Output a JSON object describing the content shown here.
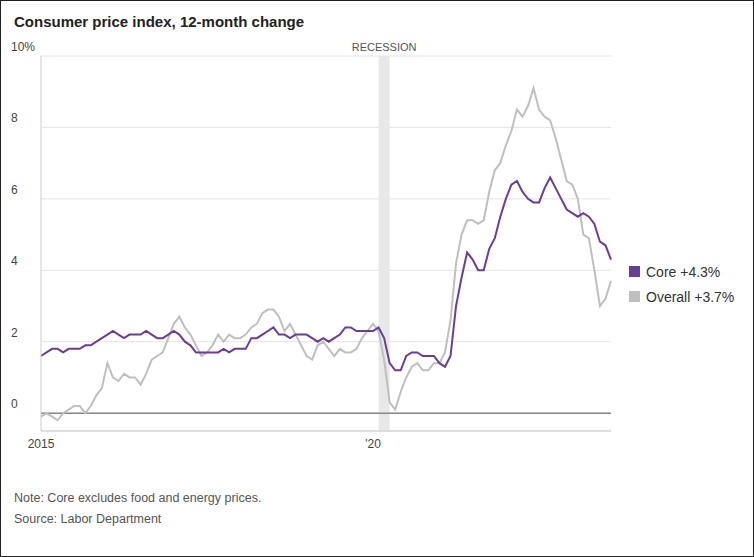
{
  "chart_data": {
    "type": "line",
    "title": "Consumer price index, 12-month change",
    "categories": [
      "2015",
      null,
      null,
      null,
      null,
      null,
      null,
      null,
      null,
      null,
      null,
      null,
      null,
      null,
      null,
      null,
      null,
      null,
      null,
      null,
      null,
      null,
      null,
      null,
      null,
      null,
      null,
      null,
      null,
      null,
      null,
      null,
      null,
      null,
      null,
      null,
      null,
      null,
      null,
      null,
      null,
      null,
      null,
      null,
      null,
      null,
      null,
      null,
      null,
      null,
      null,
      null,
      null,
      null,
      null,
      null,
      null,
      null,
      null,
      null,
      "'20",
      null,
      null,
      null,
      null,
      null,
      null,
      null,
      null,
      null,
      null,
      null,
      null,
      null,
      null,
      null,
      null,
      null,
      null,
      null,
      null,
      null,
      null,
      null,
      null,
      null,
      null,
      null,
      null,
      null,
      null,
      null,
      null,
      null,
      null,
      null,
      null,
      null,
      null,
      null,
      null,
      null,
      null,
      null
    ],
    "series": [
      {
        "name": "Core +4.3%",
        "color": "#6a3d9a",
        "values": [
          1.6,
          1.7,
          1.8,
          1.8,
          1.7,
          1.8,
          1.8,
          1.8,
          1.9,
          1.9,
          2.0,
          2.1,
          2.2,
          2.3,
          2.2,
          2.1,
          2.2,
          2.2,
          2.2,
          2.3,
          2.2,
          2.1,
          2.1,
          2.2,
          2.3,
          2.2,
          2.0,
          1.9,
          1.7,
          1.7,
          1.7,
          1.7,
          1.7,
          1.8,
          1.7,
          1.8,
          1.8,
          1.8,
          2.1,
          2.1,
          2.2,
          2.3,
          2.4,
          2.2,
          2.2,
          2.1,
          2.2,
          2.2,
          2.2,
          2.1,
          2.0,
          2.1,
          2.0,
          2.1,
          2.2,
          2.4,
          2.4,
          2.3,
          2.3,
          2.3,
          2.3,
          2.4,
          2.1,
          1.4,
          1.2,
          1.2,
          1.6,
          1.7,
          1.7,
          1.6,
          1.6,
          1.6,
          1.4,
          1.3,
          1.6,
          3.0,
          3.8,
          4.5,
          4.3,
          4.0,
          4.0,
          4.6,
          4.9,
          5.5,
          6.0,
          6.4,
          6.5,
          6.2,
          6.0,
          5.9,
          5.9,
          6.3,
          6.6,
          6.3,
          6.0,
          5.7,
          5.6,
          5.5,
          5.6,
          5.5,
          5.3,
          4.8,
          4.7,
          4.3
        ]
      },
      {
        "name": "Overall +3.7%",
        "color": "#bfbfbf",
        "values": [
          -0.1,
          0.0,
          -0.1,
          -0.2,
          0.0,
          0.1,
          0.2,
          0.2,
          0.0,
          0.2,
          0.5,
          0.7,
          1.4,
          1.0,
          0.9,
          1.1,
          1.0,
          1.0,
          0.8,
          1.1,
          1.5,
          1.6,
          1.7,
          2.1,
          2.5,
          2.7,
          2.4,
          2.2,
          1.9,
          1.6,
          1.7,
          1.9,
          2.2,
          2.0,
          2.2,
          2.1,
          2.1,
          2.2,
          2.4,
          2.5,
          2.8,
          2.9,
          2.9,
          2.7,
          2.3,
          2.5,
          2.2,
          1.9,
          1.6,
          1.5,
          1.9,
          2.0,
          1.8,
          1.6,
          1.8,
          1.7,
          1.7,
          1.8,
          2.1,
          2.3,
          2.5,
          2.3,
          1.5,
          0.3,
          0.1,
          0.6,
          1.0,
          1.3,
          1.4,
          1.2,
          1.2,
          1.4,
          1.4,
          1.7,
          2.6,
          4.2,
          5.0,
          5.4,
          5.4,
          5.3,
          5.4,
          6.2,
          6.8,
          7.0,
          7.5,
          7.9,
          8.5,
          8.3,
          8.6,
          9.1,
          8.5,
          8.3,
          8.2,
          7.7,
          7.1,
          6.5,
          6.4,
          6.0,
          5.0,
          4.9,
          4.0,
          3.0,
          3.2,
          3.7
        ]
      }
    ],
    "ylim": [
      -0.5,
      10
    ],
    "yticks": [
      0,
      2,
      4,
      6,
      8,
      {
        "value": 10,
        "label": "10%"
      }
    ],
    "grid": true,
    "legend": "right",
    "recession": {
      "label": "RECESSION",
      "from": 61,
      "to": 63
    },
    "notes": [
      "Note: Core excludes food and energy prices.",
      "Source: Labor Department"
    ]
  }
}
